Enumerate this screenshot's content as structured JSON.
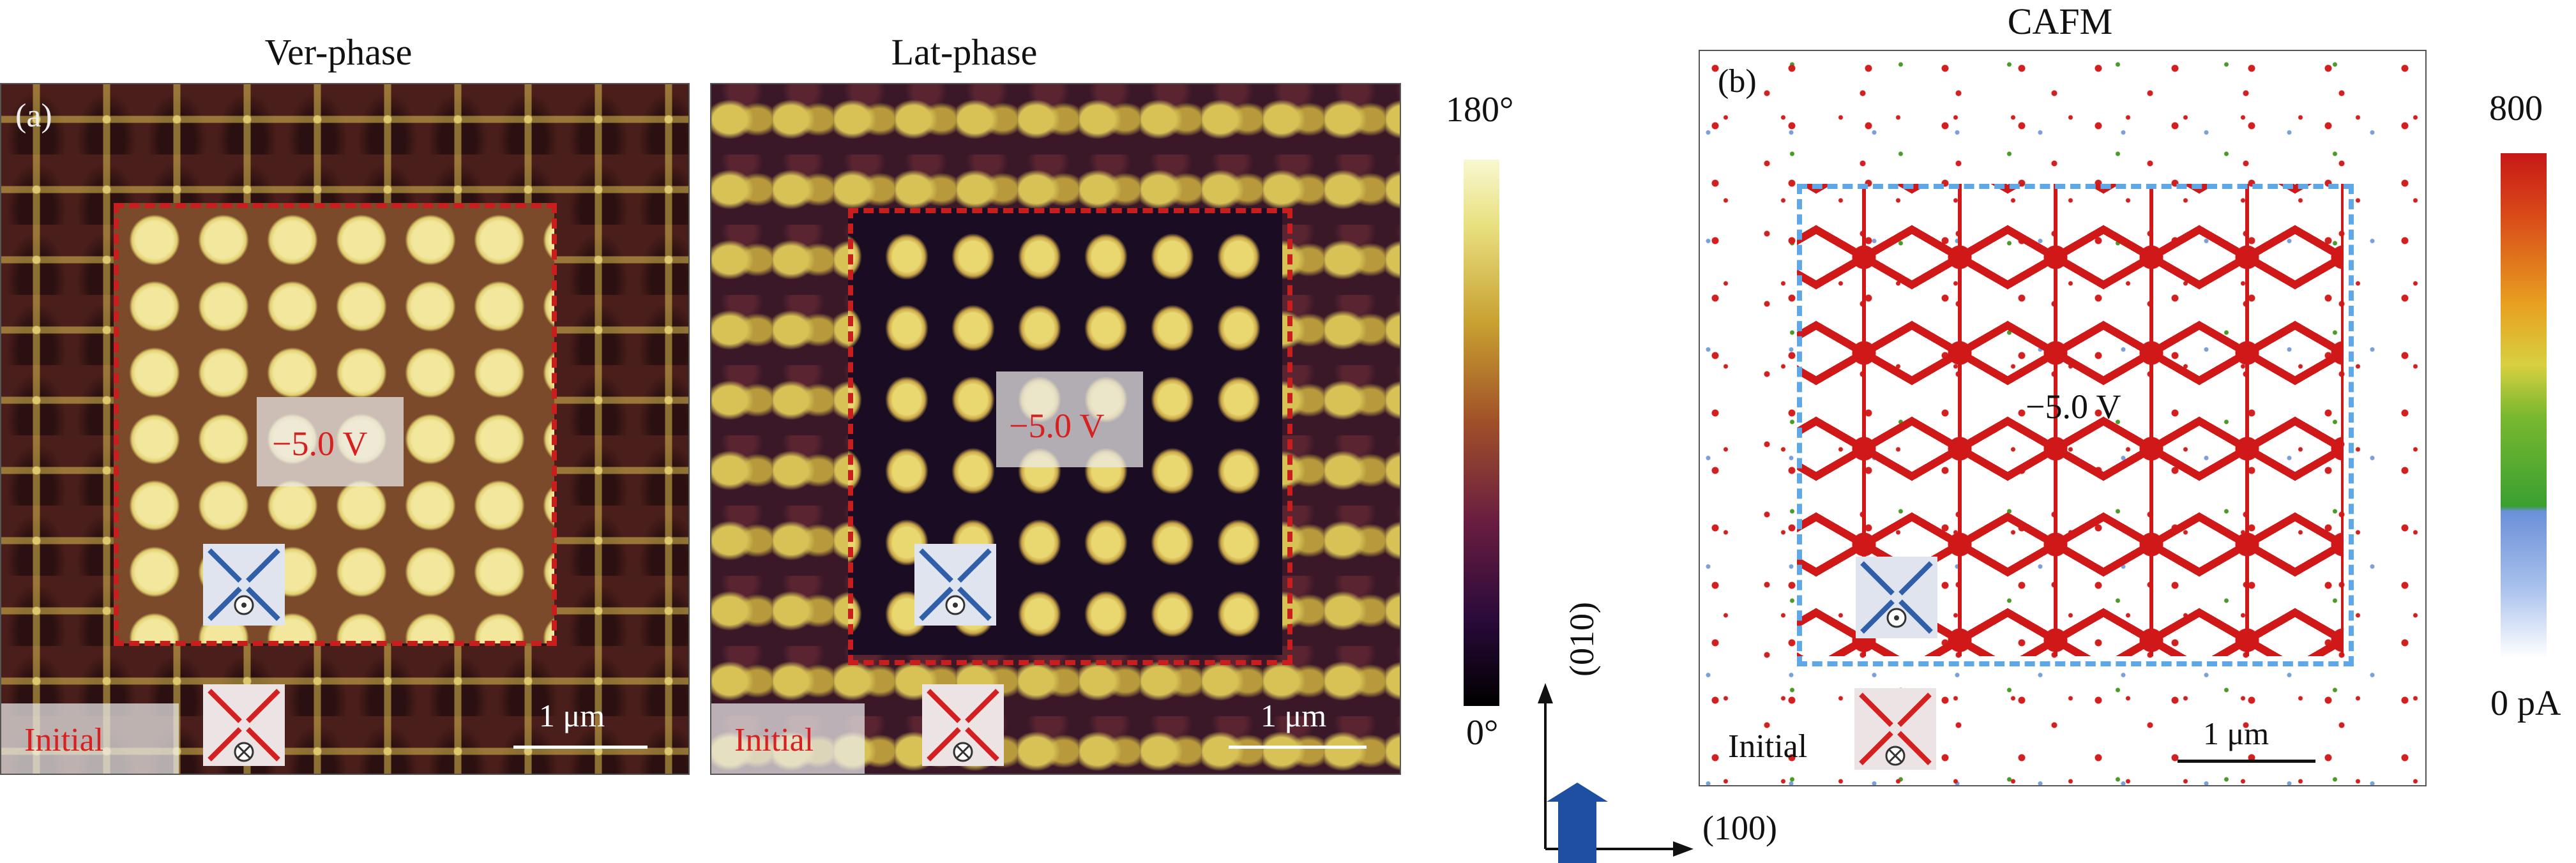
{
  "panel_a": {
    "ver_title": "Ver-phase",
    "lat_title": "Lat-phase",
    "label": "(a)",
    "voltage": "−5.0 V",
    "initial": "Initial",
    "scalebar": "1 μm"
  },
  "phase_colorbar": {
    "max": "180°",
    "min": "0°"
  },
  "panel_b": {
    "title": "CAFM",
    "label": "(b)",
    "voltage": "−5.0 V",
    "initial": "Initial",
    "scalebar": "1 μm"
  },
  "current_colorbar": {
    "max": "800",
    "min": "0 pA"
  },
  "axes": {
    "vertical": "(010)",
    "horizontal": "(100)"
  },
  "colors": {
    "dash_red": "#c81e1e",
    "dash_blue": "#5fa8e8",
    "voltage_red": "#d82020",
    "icon_blue": "#2f5fa8",
    "icon_red": "#d42020",
    "arrow_blue": "#1f4fa0"
  },
  "icons": {
    "blue_state": "x-arrows-inward-dot-icon",
    "red_state": "x-arrows-outward-cross-icon"
  }
}
